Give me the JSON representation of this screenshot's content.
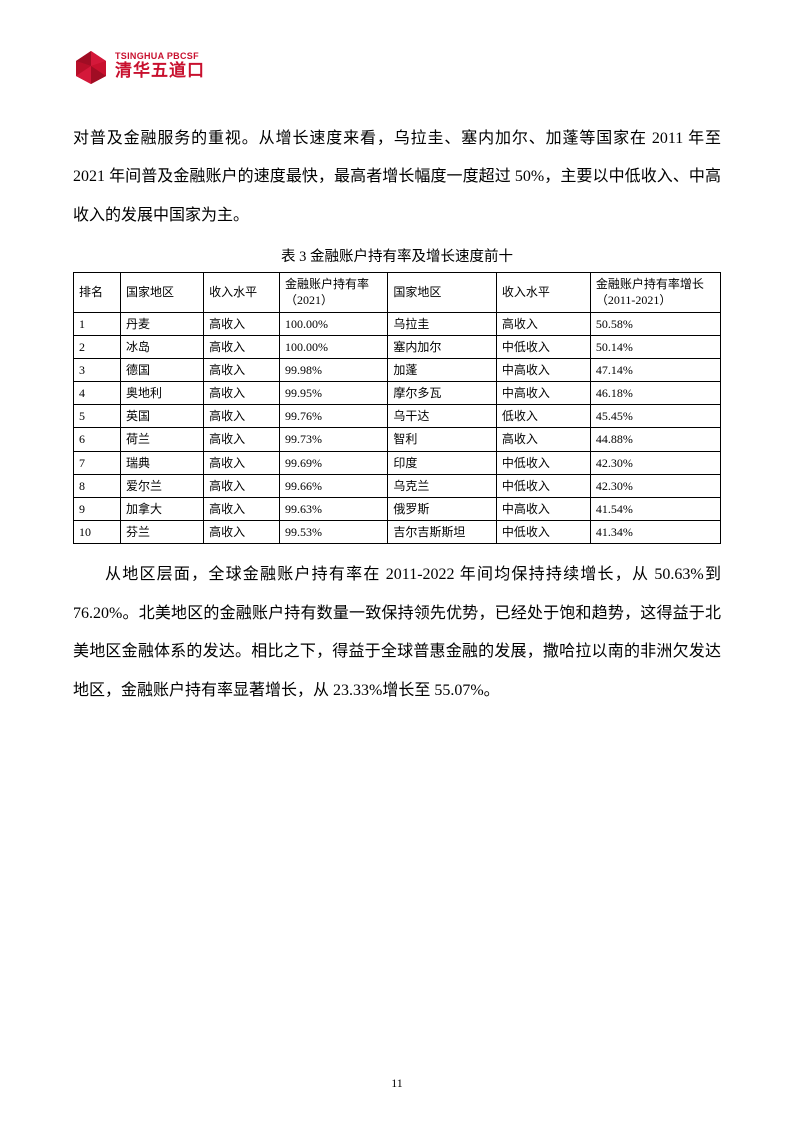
{
  "logo": {
    "brand_color": "#c8102e",
    "text_en": "TSINGHUA PBCSF",
    "text_cn": "清华五道口"
  },
  "paragraphs": {
    "p1": "对普及金融服务的重视。从增长速度来看，乌拉圭、塞内加尔、加蓬等国家在 2011 年至 2021 年间普及金融账户的速度最快，最高者增长幅度一度超过 50%，主要以中低收入、中高收入的发展中国家为主。",
    "p2": "从地区层面，全球金融账户持有率在 2011-2022 年间均保持持续增长，从 50.63%到 76.20%。北美地区的金融账户持有数量一致保持领先优势，已经处于饱和趋势，这得益于北美地区金融体系的发达。相比之下，得益于全球普惠金融的发展，撒哈拉以南的非洲欠发达地区，金融账户持有率显著增长，从 23.33%增长至 55.07%。"
  },
  "table": {
    "caption": "表 3 金融账户持有率及增长速度前十",
    "headers": {
      "rank": "排名",
      "country": "国家地区",
      "income": "收入水平",
      "rate": "金融账户持有率（2021）",
      "country2": "国家地区",
      "income2": "收入水平",
      "growth": "金融账户持有率增长（2011-2021）"
    },
    "rows": [
      {
        "rank": "1",
        "country": "丹麦",
        "income": "高收入",
        "rate": "100.00%",
        "country2": "乌拉圭",
        "income2": "高收入",
        "growth": "50.58%"
      },
      {
        "rank": "2",
        "country": "冰岛",
        "income": "高收入",
        "rate": "100.00%",
        "country2": "塞内加尔",
        "income2": "中低收入",
        "growth": "50.14%"
      },
      {
        "rank": "3",
        "country": "德国",
        "income": "高收入",
        "rate": "99.98%",
        "country2": "加蓬",
        "income2": "中高收入",
        "growth": "47.14%"
      },
      {
        "rank": "4",
        "country": "奥地利",
        "income": "高收入",
        "rate": "99.95%",
        "country2": "摩尔多瓦",
        "income2": "中高收入",
        "growth": "46.18%"
      },
      {
        "rank": "5",
        "country": "英国",
        "income": "高收入",
        "rate": "99.76%",
        "country2": "乌干达",
        "income2": "低收入",
        "growth": "45.45%"
      },
      {
        "rank": "6",
        "country": "荷兰",
        "income": "高收入",
        "rate": "99.73%",
        "country2": "智利",
        "income2": "高收入",
        "growth": "44.88%"
      },
      {
        "rank": "7",
        "country": "瑞典",
        "income": "高收入",
        "rate": "99.69%",
        "country2": "印度",
        "income2": "中低收入",
        "growth": "42.30%"
      },
      {
        "rank": "8",
        "country": "爱尔兰",
        "income": "高收入",
        "rate": "99.66%",
        "country2": "乌克兰",
        "income2": "中低收入",
        "growth": "42.30%"
      },
      {
        "rank": "9",
        "country": "加拿大",
        "income": "高收入",
        "rate": "99.63%",
        "country2": "俄罗斯",
        "income2": "中高收入",
        "growth": "41.54%"
      },
      {
        "rank": "10",
        "country": "芬兰",
        "income": "高收入",
        "rate": "99.53%",
        "country2": "吉尔吉斯斯坦",
        "income2": "中低收入",
        "growth": "41.34%"
      }
    ]
  },
  "page_number": "11",
  "style": {
    "body_font_size": 16,
    "body_line_height": 2.4,
    "table_font_size": 12,
    "text_color": "#000000",
    "background_color": "#ffffff",
    "border_color": "#000000"
  }
}
